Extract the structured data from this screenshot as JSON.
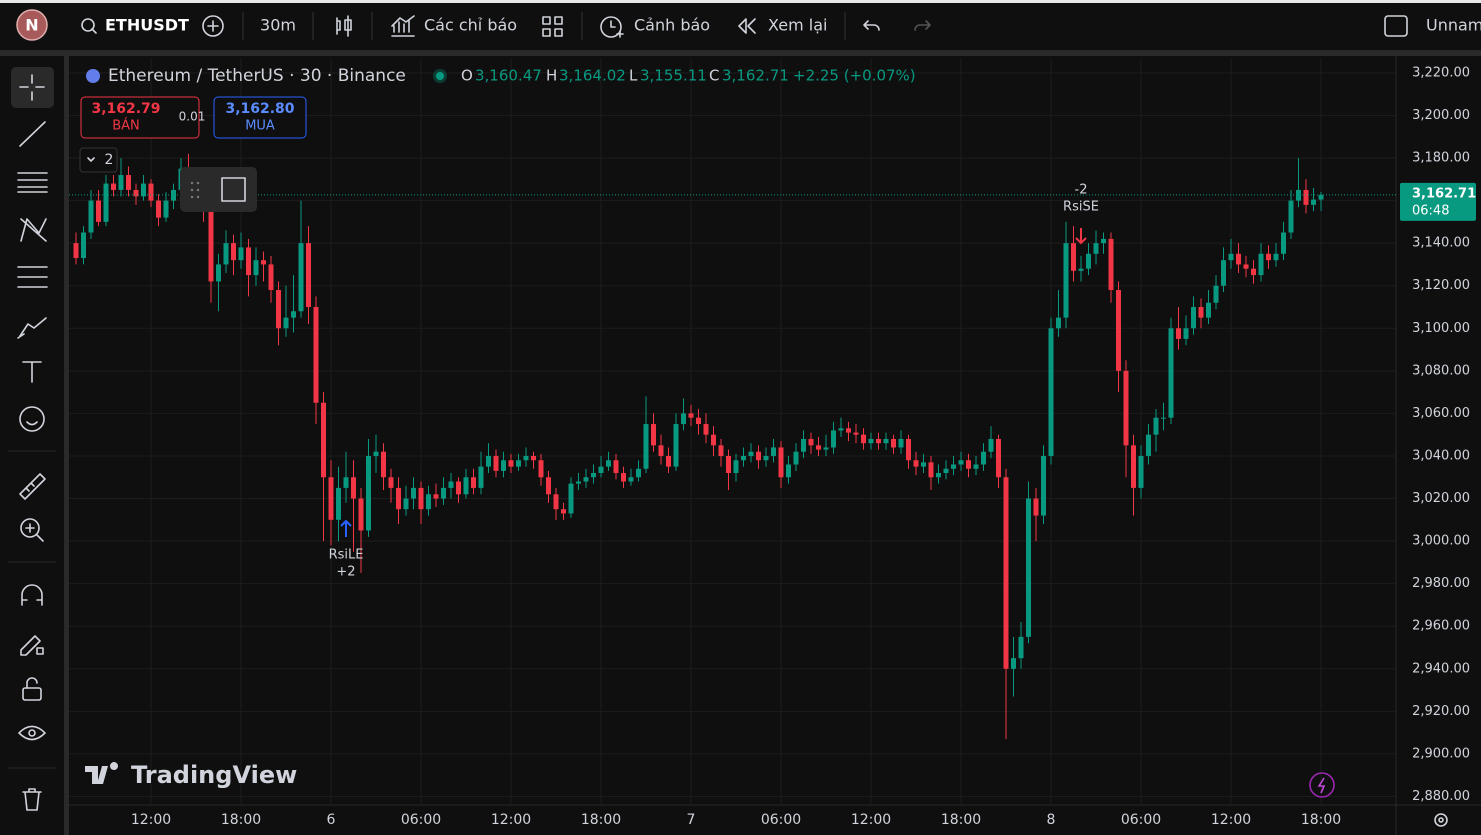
{
  "toolbar": {
    "avatar": "N",
    "symbol": "ETHUSDT",
    "interval": "30m",
    "indicators": "Các chỉ báo",
    "alerts": "Cảnh báo",
    "replay": "Xem lại",
    "layout_name": "Unnam"
  },
  "trade": {
    "sell_price": "3,162.79",
    "sell_label": "BÁN",
    "quantity": "0.01",
    "buy_price": "3,162.80",
    "buy_label": "MUA"
  },
  "object_tree_count": "2",
  "signals": [
    {
      "label": "RsiLE",
      "quantity": "+2"
    },
    {
      "label": "RsiSE",
      "quantity": "-2"
    }
  ],
  "watermark": "TradingView",
  "chart_data": {
    "type": "candlestick",
    "title": "Ethereum / TetherUS · 30 · Binance",
    "legend": {
      "open_label": "O",
      "open": "3,160.47",
      "high_label": "H",
      "high": "3,164.02",
      "low_label": "L",
      "low": "3,155.11",
      "close_label": "C",
      "close": "3,162.71",
      "change": "+2.25 (+0.07%)"
    },
    "up_color": "#089981",
    "down_color": "#f23645",
    "grid": true,
    "ylim": [
      2876,
      3227
    ],
    "yticks": [
      {
        "value": 2880,
        "label": "2,880.00"
      },
      {
        "value": 2900,
        "label": "2,900.00"
      },
      {
        "value": 2920,
        "label": "2,920.00"
      },
      {
        "value": 2940,
        "label": "2,940.00"
      },
      {
        "value": 2960,
        "label": "2,960.00"
      },
      {
        "value": 2980,
        "label": "2,980.00"
      },
      {
        "value": 3000,
        "label": "3,000.00"
      },
      {
        "value": 3020,
        "label": "3,020.00"
      },
      {
        "value": 3040,
        "label": "3,040.00"
      },
      {
        "value": 3060,
        "label": "3,060.00"
      },
      {
        "value": 3080,
        "label": "3,080.00"
      },
      {
        "value": 3100,
        "label": "3,100.00"
      },
      {
        "value": 3120,
        "label": "3,120.00"
      },
      {
        "value": 3140,
        "label": "3,140.00"
      },
      {
        "value": 3160,
        "label": "3,160.00"
      },
      {
        "value": 3180,
        "label": "3,180.00"
      },
      {
        "value": 3200,
        "label": "3,200.00"
      },
      {
        "value": 3220,
        "label": "3,220.00"
      }
    ],
    "xticks": [
      {
        "value": 10,
        "label": "12:00"
      },
      {
        "value": 22,
        "label": "18:00"
      },
      {
        "value": 34,
        "label": "6"
      },
      {
        "value": 46,
        "label": "06:00"
      },
      {
        "value": 58,
        "label": "12:00"
      },
      {
        "value": 70,
        "label": "18:00"
      },
      {
        "value": 82,
        "label": "7"
      },
      {
        "value": 94,
        "label": "06:00"
      },
      {
        "value": 106,
        "label": "12:00"
      },
      {
        "value": 118,
        "label": "18:00"
      },
      {
        "value": 130,
        "label": "8"
      },
      {
        "value": 142,
        "label": "06:00"
      },
      {
        "value": 154,
        "label": "12:00"
      },
      {
        "value": 166,
        "label": "18:00"
      }
    ],
    "last_price": {
      "value": 3162.71,
      "label": "3,162.71"
    },
    "countdown": "06:48",
    "candles": [
      [
        3140,
        3145,
        3130,
        3133
      ],
      [
        3133,
        3148,
        3130,
        3145
      ],
      [
        3145,
        3165,
        3142,
        3160
      ],
      [
        3160,
        3165,
        3148,
        3150
      ],
      [
        3150,
        3172,
        3148,
        3168
      ],
      [
        3168,
        3172,
        3162,
        3165
      ],
      [
        3165,
        3180,
        3162,
        3172
      ],
      [
        3172,
        3176,
        3162,
        3165
      ],
      [
        3165,
        3168,
        3158,
        3162
      ],
      [
        3162,
        3172,
        3160,
        3168
      ],
      [
        3168,
        3170,
        3157,
        3160
      ],
      [
        3160,
        3163,
        3148,
        3152
      ],
      [
        3152,
        3164,
        3150,
        3160
      ],
      [
        3160,
        3168,
        3156,
        3165
      ],
      [
        3165,
        3180,
        3163,
        3175
      ],
      [
        3175,
        3182,
        3167,
        3170
      ],
      [
        3170,
        3174,
        3156,
        3160
      ],
      [
        3160,
        3166,
        3150,
        3158
      ],
      [
        3158,
        3162,
        3112,
        3122
      ],
      [
        3122,
        3135,
        3108,
        3130
      ],
      [
        3130,
        3146,
        3126,
        3140
      ],
      [
        3140,
        3144,
        3125,
        3132
      ],
      [
        3132,
        3145,
        3128,
        3138
      ],
      [
        3138,
        3142,
        3115,
        3125
      ],
      [
        3125,
        3138,
        3120,
        3132
      ],
      [
        3132,
        3136,
        3122,
        3130
      ],
      [
        3130,
        3134,
        3112,
        3118
      ],
      [
        3118,
        3122,
        3092,
        3100
      ],
      [
        3100,
        3120,
        3096,
        3105
      ],
      [
        3105,
        3125,
        3098,
        3108
      ],
      [
        3108,
        3160,
        3105,
        3140
      ],
      [
        3140,
        3148,
        3102,
        3110
      ],
      [
        3110,
        3115,
        3055,
        3065
      ],
      [
        3065,
        3070,
        3000,
        3030
      ],
      [
        3030,
        3038,
        2998,
        3010
      ],
      [
        3010,
        3035,
        3000,
        3025
      ],
      [
        3025,
        3042,
        3018,
        3030
      ],
      [
        3030,
        3038,
        2995,
        3020
      ],
      [
        3020,
        3025,
        2985,
        3005
      ],
      [
        3005,
        3048,
        3002,
        3040
      ],
      [
        3040,
        3050,
        3032,
        3042
      ],
      [
        3042,
        3046,
        3024,
        3030
      ],
      [
        3030,
        3034,
        3018,
        3025
      ],
      [
        3025,
        3030,
        3008,
        3015
      ],
      [
        3015,
        3026,
        3012,
        3020
      ],
      [
        3020,
        3030,
        3015,
        3025
      ],
      [
        3025,
        3028,
        3008,
        3015
      ],
      [
        3015,
        3026,
        3012,
        3022
      ],
      [
        3022,
        3027,
        3016,
        3020
      ],
      [
        3020,
        3030,
        3017,
        3025
      ],
      [
        3025,
        3032,
        3020,
        3028
      ],
      [
        3028,
        3030,
        3018,
        3022
      ],
      [
        3022,
        3034,
        3020,
        3030
      ],
      [
        3030,
        3034,
        3022,
        3025
      ],
      [
        3025,
        3042,
        3022,
        3035
      ],
      [
        3035,
        3046,
        3032,
        3040
      ],
      [
        3040,
        3043,
        3030,
        3033
      ],
      [
        3033,
        3042,
        3030,
        3038
      ],
      [
        3038,
        3041,
        3032,
        3035
      ],
      [
        3035,
        3041,
        3033,
        3038
      ],
      [
        3038,
        3044,
        3035,
        3040
      ],
      [
        3040,
        3042,
        3034,
        3038
      ],
      [
        3038,
        3041,
        3026,
        3030
      ],
      [
        3030,
        3033,
        3018,
        3022
      ],
      [
        3022,
        3025,
        3010,
        3015
      ],
      [
        3015,
        3018,
        3010,
        3013
      ],
      [
        3013,
        3030,
        3011,
        3027
      ],
      [
        3027,
        3032,
        3024,
        3028
      ],
      [
        3028,
        3034,
        3025,
        3030
      ],
      [
        3030,
        3036,
        3027,
        3032
      ],
      [
        3032,
        3040,
        3030,
        3035
      ],
      [
        3035,
        3042,
        3033,
        3038
      ],
      [
        3038,
        3041,
        3029,
        3032
      ],
      [
        3032,
        3035,
        3025,
        3028
      ],
      [
        3028,
        3034,
        3026,
        3030
      ],
      [
        3030,
        3038,
        3028,
        3034
      ],
      [
        3034,
        3068,
        3032,
        3055
      ],
      [
        3055,
        3060,
        3042,
        3045
      ],
      [
        3045,
        3050,
        3036,
        3040
      ],
      [
        3040,
        3044,
        3032,
        3035
      ],
      [
        3035,
        3060,
        3033,
        3055
      ],
      [
        3055,
        3067,
        3052,
        3060
      ],
      [
        3060,
        3064,
        3054,
        3058
      ],
      [
        3058,
        3062,
        3050,
        3055
      ],
      [
        3055,
        3060,
        3046,
        3050
      ],
      [
        3050,
        3054,
        3040,
        3045
      ],
      [
        3045,
        3048,
        3035,
        3040
      ],
      [
        3040,
        3043,
        3024,
        3032
      ],
      [
        3032,
        3041,
        3028,
        3038
      ],
      [
        3038,
        3044,
        3035,
        3040
      ],
      [
        3040,
        3046,
        3037,
        3042
      ],
      [
        3042,
        3045,
        3034,
        3038
      ],
      [
        3038,
        3044,
        3035,
        3040
      ],
      [
        3040,
        3048,
        3037,
        3044
      ],
      [
        3044,
        3047,
        3025,
        3030
      ],
      [
        3030,
        3040,
        3027,
        3036
      ],
      [
        3036,
        3046,
        3033,
        3042
      ],
      [
        3042,
        3052,
        3039,
        3048
      ],
      [
        3048,
        3051,
        3041,
        3045
      ],
      [
        3045,
        3049,
        3040,
        3043
      ],
      [
        3043,
        3050,
        3040,
        3044
      ],
      [
        3044,
        3056,
        3041,
        3052
      ],
      [
        3052,
        3058,
        3049,
        3053
      ],
      [
        3053,
        3056,
        3047,
        3051
      ],
      [
        3051,
        3055,
        3046,
        3050
      ],
      [
        3050,
        3053,
        3043,
        3046
      ],
      [
        3046,
        3051,
        3043,
        3048
      ],
      [
        3048,
        3051,
        3043,
        3046
      ],
      [
        3046,
        3051,
        3043,
        3048
      ],
      [
        3048,
        3050,
        3041,
        3044
      ],
      [
        3044,
        3052,
        3041,
        3048
      ],
      [
        3048,
        3050,
        3034,
        3038
      ],
      [
        3038,
        3042,
        3031,
        3035
      ],
      [
        3035,
        3041,
        3032,
        3037
      ],
      [
        3037,
        3040,
        3024,
        3030
      ],
      [
        3030,
        3036,
        3027,
        3032
      ],
      [
        3032,
        3038,
        3029,
        3034
      ],
      [
        3034,
        3040,
        3031,
        3036
      ],
      [
        3036,
        3042,
        3033,
        3038
      ],
      [
        3038,
        3041,
        3030,
        3034
      ],
      [
        3034,
        3040,
        3031,
        3036
      ],
      [
        3036,
        3046,
        3033,
        3042
      ],
      [
        3042,
        3054,
        3039,
        3048
      ],
      [
        3048,
        3050,
        3025,
        3030
      ],
      [
        3030,
        3034,
        2907,
        2940
      ],
      [
        2940,
        2955,
        2927,
        2945
      ],
      [
        2945,
        2962,
        2940,
        2955
      ],
      [
        2955,
        3028,
        2952,
        3020
      ],
      [
        3020,
        3025,
        3000,
        3012
      ],
      [
        3012,
        3045,
        3008,
        3040
      ],
      [
        3040,
        3105,
        3036,
        3100
      ],
      [
        3100,
        3118,
        3096,
        3105
      ],
      [
        3105,
        3150,
        3100,
        3140
      ],
      [
        3140,
        3148,
        3122,
        3127
      ],
      [
        3127,
        3134,
        3122,
        3128
      ],
      [
        3128,
        3140,
        3125,
        3135
      ],
      [
        3135,
        3146,
        3130,
        3140
      ],
      [
        3140,
        3145,
        3135,
        3142
      ],
      [
        3142,
        3145,
        3112,
        3118
      ],
      [
        3118,
        3122,
        3070,
        3080
      ],
      [
        3080,
        3085,
        3030,
        3045
      ],
      [
        3045,
        3050,
        3012,
        3025
      ],
      [
        3025,
        3045,
        3020,
        3040
      ],
      [
        3040,
        3055,
        3036,
        3050
      ],
      [
        3050,
        3062,
        3042,
        3058
      ],
      [
        3058,
        3065,
        3052,
        3058
      ],
      [
        3058,
        3105,
        3055,
        3100
      ],
      [
        3100,
        3110,
        3090,
        3095
      ],
      [
        3095,
        3106,
        3092,
        3100
      ],
      [
        3100,
        3115,
        3097,
        3110
      ],
      [
        3110,
        3114,
        3100,
        3105
      ],
      [
        3105,
        3118,
        3102,
        3112
      ],
      [
        3112,
        3125,
        3109,
        3120
      ],
      [
        3120,
        3138,
        3117,
        3132
      ],
      [
        3132,
        3142,
        3128,
        3135
      ],
      [
        3135,
        3140,
        3126,
        3130
      ],
      [
        3130,
        3134,
        3124,
        3128
      ],
      [
        3128,
        3132,
        3121,
        3125
      ],
      [
        3125,
        3140,
        3122,
        3135
      ],
      [
        3135,
        3139,
        3128,
        3132
      ],
      [
        3132,
        3140,
        3129,
        3135
      ],
      [
        3135,
        3150,
        3132,
        3145
      ],
      [
        3145,
        3165,
        3142,
        3160
      ],
      [
        3160,
        3180,
        3157,
        3165
      ],
      [
        3165,
        3170,
        3154,
        3158
      ],
      [
        3158,
        3166,
        3155,
        3160.47
      ],
      [
        3160.47,
        3164.02,
        3155.11,
        3162.71
      ]
    ]
  }
}
